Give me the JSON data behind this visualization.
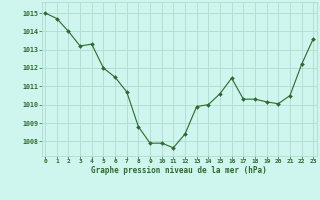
{
  "x": [
    0,
    1,
    2,
    3,
    4,
    5,
    6,
    7,
    8,
    9,
    10,
    11,
    12,
    13,
    14,
    15,
    16,
    17,
    18,
    19,
    20,
    21,
    22,
    23
  ],
  "y": [
    1015.0,
    1014.7,
    1014.0,
    1013.2,
    1013.3,
    1012.0,
    1011.5,
    1010.7,
    1008.8,
    1007.9,
    1007.9,
    1007.65,
    1008.4,
    1009.9,
    1010.0,
    1010.6,
    1011.45,
    1010.3,
    1010.3,
    1010.15,
    1010.05,
    1010.5,
    1012.2,
    1013.6
  ],
  "line_color": "#2d6a2d",
  "marker_color": "#2d6a2d",
  "bg_color": "#cef5ee",
  "grid_color": "#b0ddd0",
  "text_color": "#2d6a2d",
  "xlabel": "Graphe pression niveau de la mer (hPa)",
  "yticks": [
    1008,
    1009,
    1010,
    1011,
    1012,
    1013,
    1014,
    1015
  ],
  "xticks": [
    0,
    1,
    2,
    3,
    4,
    5,
    6,
    7,
    8,
    9,
    10,
    11,
    12,
    13,
    14,
    15,
    16,
    17,
    18,
    19,
    20,
    21,
    22,
    23
  ],
  "ylim": [
    1007.2,
    1015.6
  ],
  "xlim": [
    -0.3,
    23.3
  ]
}
